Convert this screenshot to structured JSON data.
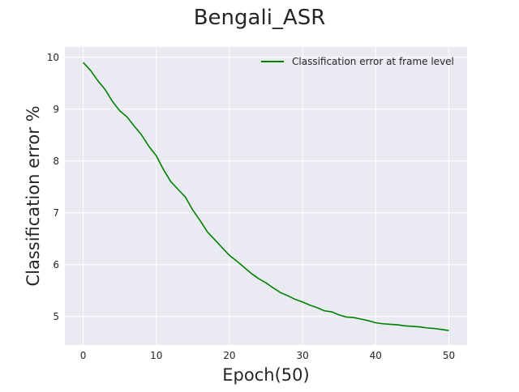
{
  "chart_data": {
    "type": "line",
    "title": "Bengali_ASR",
    "xlabel": "Epoch(50)",
    "ylabel": "Classification error %",
    "xlim": [
      -2.5,
      52.5
    ],
    "ylim": [
      4.45,
      10.2
    ],
    "xticks": [
      0,
      10,
      20,
      30,
      40,
      50
    ],
    "yticks": [
      5,
      6,
      7,
      8,
      9,
      10
    ],
    "grid": true,
    "legend_position": "top-right",
    "series": [
      {
        "name": "Classification error at frame level",
        "color": "#008000",
        "x": [
          0,
          1,
          2,
          3,
          4,
          5,
          6,
          7,
          8,
          9,
          10,
          11,
          12,
          13,
          14,
          15,
          16,
          17,
          18,
          19,
          20,
          21,
          22,
          23,
          24,
          25,
          26,
          27,
          28,
          29,
          30,
          31,
          32,
          33,
          34,
          35,
          36,
          37,
          38,
          39,
          40,
          41,
          42,
          43,
          44,
          45,
          46,
          47,
          48,
          49,
          50
        ],
        "y": [
          9.9,
          9.75,
          9.55,
          9.38,
          9.15,
          8.97,
          8.85,
          8.67,
          8.5,
          8.28,
          8.1,
          7.83,
          7.6,
          7.45,
          7.3,
          7.05,
          6.85,
          6.63,
          6.48,
          6.33,
          6.18,
          6.07,
          5.95,
          5.83,
          5.73,
          5.65,
          5.55,
          5.46,
          5.4,
          5.33,
          5.28,
          5.22,
          5.17,
          5.11,
          5.09,
          5.03,
          4.99,
          4.98,
          4.95,
          4.92,
          4.88,
          4.86,
          4.85,
          4.84,
          4.82,
          4.81,
          4.8,
          4.78,
          4.77,
          4.75,
          4.73
        ]
      }
    ]
  }
}
